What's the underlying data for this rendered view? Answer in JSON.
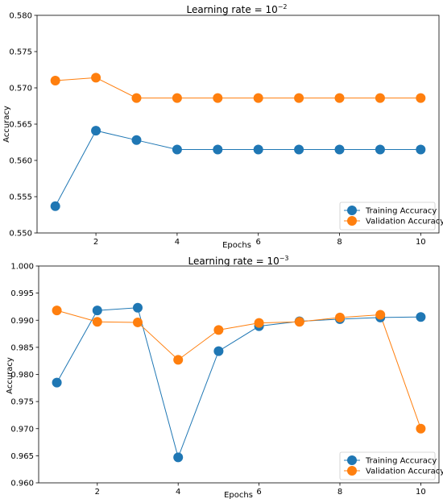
{
  "chart_data": [
    {
      "type": "line",
      "title_prefix": "Learning rate = 10",
      "title_exponent": "−2",
      "xlabel": "Epochs",
      "ylabel": "Accuracy",
      "x": [
        1,
        2,
        3,
        4,
        5,
        6,
        7,
        8,
        9,
        10
      ],
      "xlim": [
        0.55,
        10.45
      ],
      "ylim": [
        0.55,
        0.58
      ],
      "xticks": [
        2,
        4,
        6,
        8,
        10
      ],
      "yticks": [
        0.55,
        0.555,
        0.56,
        0.565,
        0.57,
        0.575,
        0.58
      ],
      "ytick_labels": [
        "0.550",
        "0.555",
        "0.560",
        "0.565",
        "0.570",
        "0.575",
        "0.580"
      ],
      "legend_position": "lower-right",
      "grid": false,
      "series": [
        {
          "name": "Training Accuracy",
          "color": "#1f77b4",
          "values": [
            0.5537,
            0.5641,
            0.5628,
            0.5615,
            0.5615,
            0.5615,
            0.5615,
            0.5615,
            0.5615,
            0.5615
          ]
        },
        {
          "name": "Validation Accuracy",
          "color": "#ff7f0e",
          "values": [
            0.571,
            0.5714,
            0.5686,
            0.5686,
            0.5686,
            0.5686,
            0.5686,
            0.5686,
            0.5686,
            0.5686
          ]
        }
      ]
    },
    {
      "type": "line",
      "title_prefix": "Learning rate = 10",
      "title_exponent": "−3",
      "xlabel": "Epochs",
      "ylabel": "Accuracy",
      "x": [
        1,
        2,
        3,
        4,
        5,
        6,
        7,
        8,
        9,
        10
      ],
      "xlim": [
        0.55,
        10.45
      ],
      "ylim": [
        0.96,
        1.0
      ],
      "xticks": [
        2,
        4,
        6,
        8,
        10
      ],
      "yticks": [
        0.96,
        0.965,
        0.97,
        0.975,
        0.98,
        0.985,
        0.99,
        0.995,
        1.0
      ],
      "ytick_labels": [
        "0.960",
        "0.965",
        "0.970",
        "0.975",
        "0.980",
        "0.985",
        "0.990",
        "0.995",
        "1.000"
      ],
      "legend_position": "lower-right",
      "grid": false,
      "series": [
        {
          "name": "Training Accuracy",
          "color": "#1f77b4",
          "values": [
            0.9785,
            0.9918,
            0.9923,
            0.9647,
            0.9843,
            0.9889,
            0.9898,
            0.9902,
            0.9905,
            0.9906
          ]
        },
        {
          "name": "Validation Accuracy",
          "color": "#ff7f0e",
          "values": [
            0.9918,
            0.9897,
            0.9896,
            0.9827,
            0.9882,
            0.9895,
            0.9897,
            0.9905,
            0.991,
            0.97
          ]
        }
      ]
    }
  ]
}
